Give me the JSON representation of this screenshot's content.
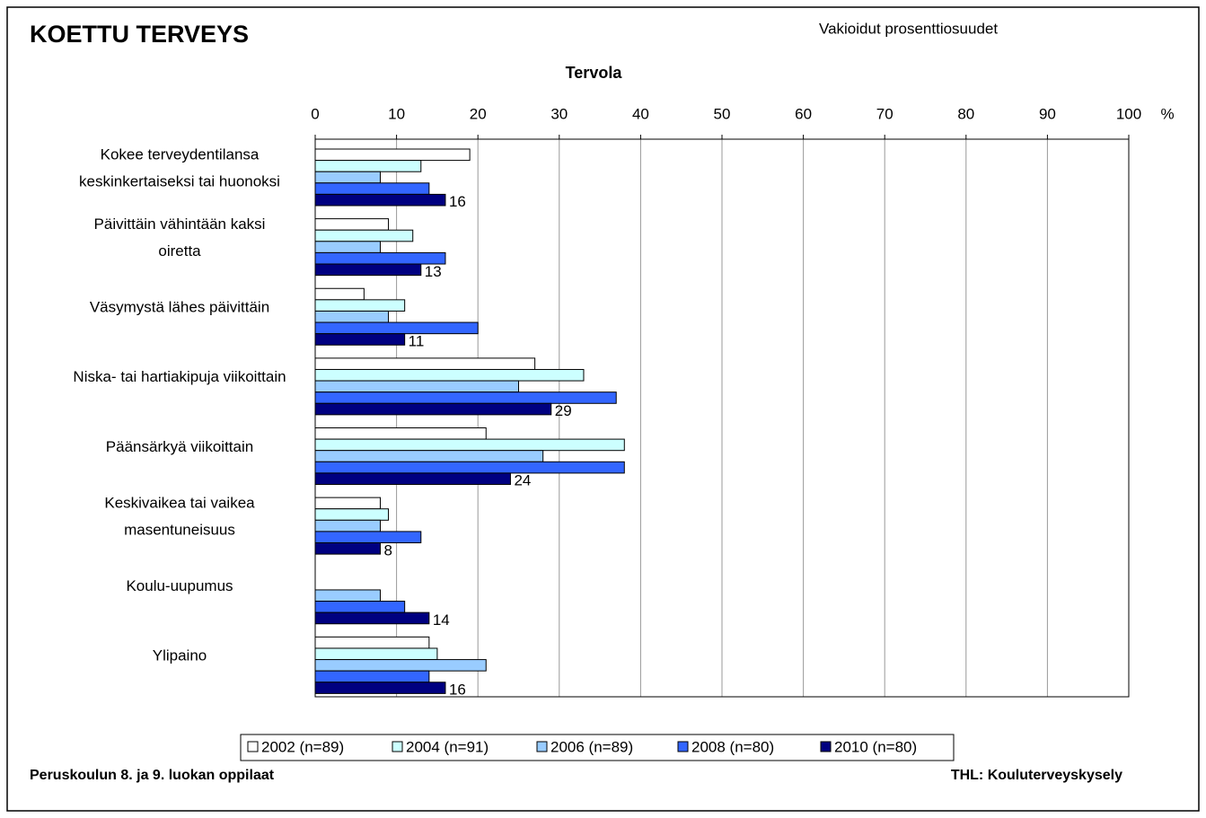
{
  "chart_data": {
    "type": "hbar",
    "title": "KOETTU TERVEYS",
    "subtitle": "Vakioidut prosenttiosuudet",
    "chart_title": "Tervola",
    "xlabel": "%",
    "footer_left": "Peruskoulun 8. ja 9. luokan oppilaat",
    "footer_right": "THL: Kouluterveyskysely",
    "categories": [
      [
        "Kokee terveydentilansa",
        "keskinkertaiseksi tai huonoksi"
      ],
      [
        "Päivittäin vähintään kaksi",
        "oiretta"
      ],
      [
        "Väsymystä lähes päivittäin"
      ],
      [
        "Niska- tai hartiakipuja viikoittain"
      ],
      [
        "Päänsärkyä viikoittain"
      ],
      [
        "Keskivaikea tai vaikea",
        "masentuneisuus"
      ],
      [
        "Koulu-uupumus"
      ],
      [
        "Ylipaino"
      ]
    ],
    "series": [
      {
        "name": "2002 (n=89)",
        "color": "#ffffff",
        "values": [
          19,
          9,
          6,
          27,
          21,
          8,
          null,
          14
        ]
      },
      {
        "name": "2004 (n=91)",
        "color": "#ccffff",
        "values": [
          13,
          12,
          11,
          33,
          38,
          9,
          null,
          15
        ]
      },
      {
        "name": "2006 (n=89)",
        "color": "#99ccff",
        "values": [
          8,
          8,
          9,
          25,
          28,
          8,
          8,
          21
        ]
      },
      {
        "name": "2008 (n=80)",
        "color": "#3366ff",
        "values": [
          14,
          16,
          20,
          37,
          38,
          13,
          11,
          14
        ]
      },
      {
        "name": "2010 (n=80)",
        "color": "#000080",
        "values": [
          16,
          13,
          11,
          29,
          24,
          8,
          14,
          16
        ],
        "data_labels": true
      }
    ],
    "xlim": [
      0,
      100
    ],
    "xticks": [
      0,
      10,
      20,
      30,
      40,
      50,
      60,
      70,
      80,
      90,
      100
    ],
    "grid": true,
    "legend": "bottom"
  }
}
